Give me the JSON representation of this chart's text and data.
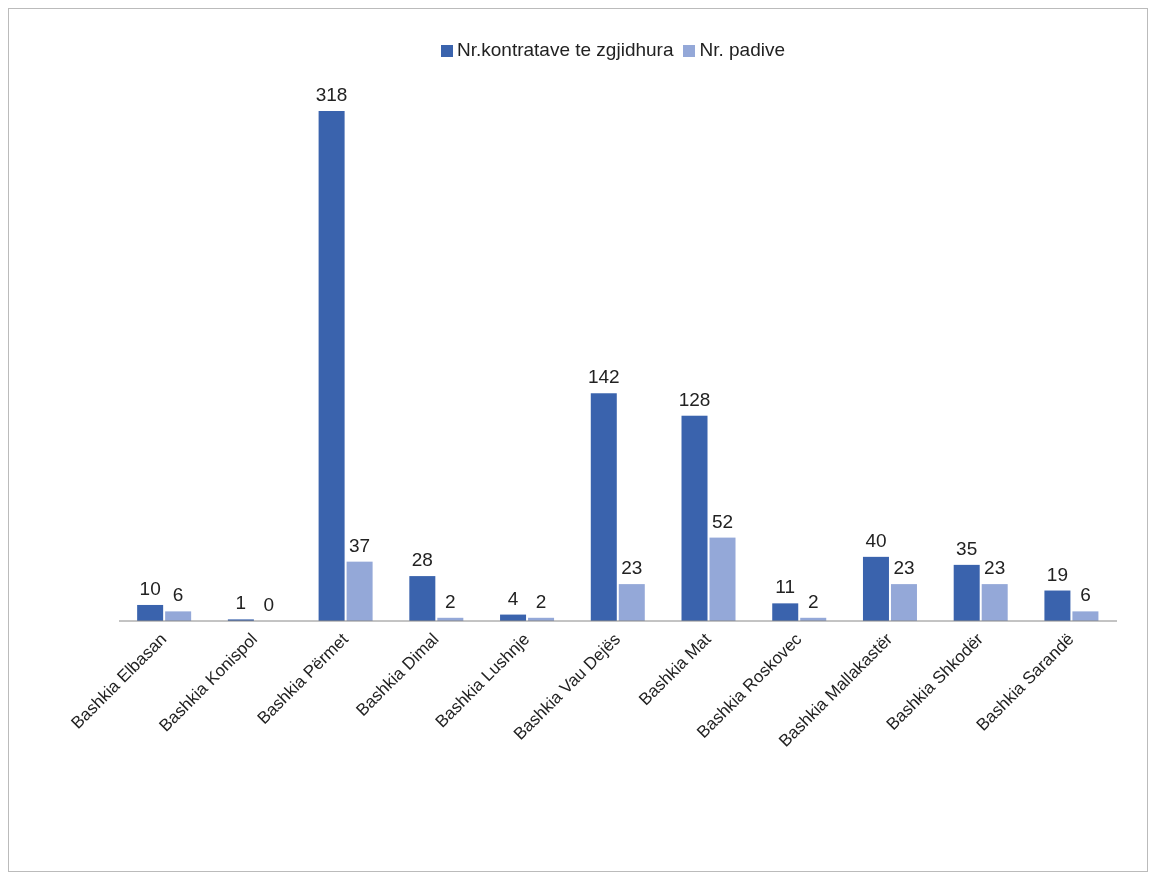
{
  "chart_data": {
    "type": "bar",
    "categories": [
      "Bashkia Elbasan",
      "Bashkia Konispol",
      "Bashkia Përmet",
      "Bashkia Dimal",
      "Bashkia Lushnje",
      "Bashkia Vau Dejës",
      "Bashkia Mat",
      "Bashkia Roskovec",
      "Bashkia Mallakastër",
      "Bashkia Shkodër",
      "Bashkia Sarandë"
    ],
    "series": [
      {
        "name": "Nr.kontratave te zgjidhura",
        "color": "#3a63ad",
        "values": [
          10,
          1,
          318,
          28,
          4,
          142,
          128,
          11,
          40,
          35,
          19
        ]
      },
      {
        "name": "Nr. padive",
        "color": "#94a8d8",
        "values": [
          6,
          0,
          37,
          2,
          2,
          23,
          52,
          2,
          23,
          23,
          6
        ]
      }
    ],
    "legend": "top",
    "data_labels": true,
    "grid": false
  }
}
